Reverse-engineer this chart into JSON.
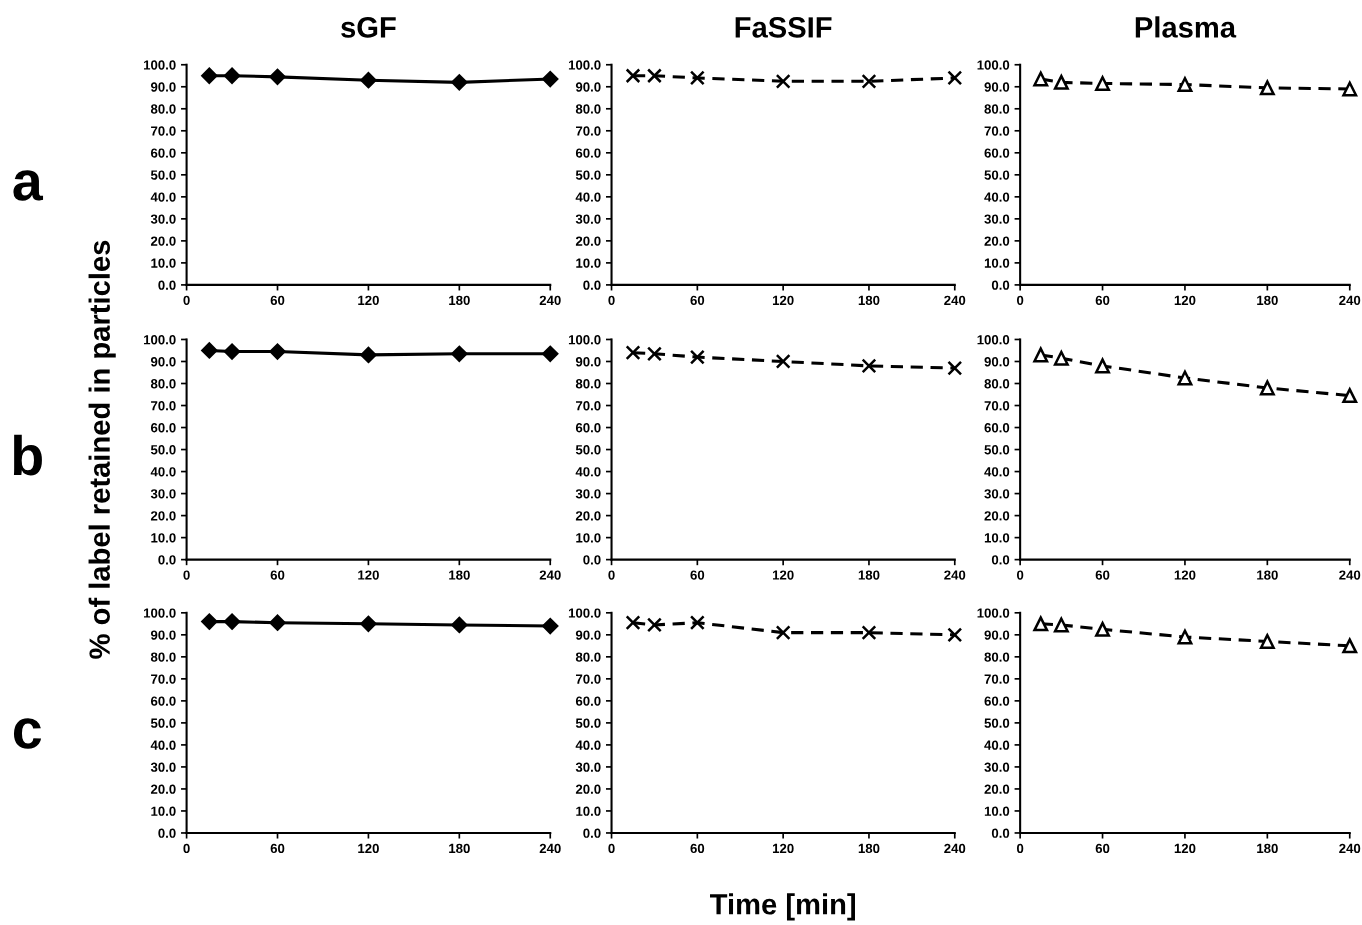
{
  "chart_data": [
    {
      "type": "line",
      "title": "sGF",
      "annotations": [
        "a"
      ],
      "x": [
        15,
        30,
        60,
        120,
        180,
        240
      ],
      "series": [
        {
          "color": "#000000",
          "values": [
            95,
            95,
            94.5,
            93,
            92,
            93.5
          ]
        }
      ],
      "marker": "diamond",
      "line_style": "solid",
      "xlim": [
        0,
        240
      ],
      "ylim": [
        0,
        100
      ],
      "xticks": [
        0,
        60,
        120,
        180,
        240
      ],
      "yticks": [
        {
          "value": 0,
          "label": "0.0"
        },
        {
          "value": 10,
          "label": "10.0"
        },
        {
          "value": 20,
          "label": "20.0"
        },
        {
          "value": 30,
          "label": "30.0"
        },
        {
          "value": 40,
          "label": "40.0"
        },
        {
          "value": 50,
          "label": "50.0"
        },
        {
          "value": 60,
          "label": "60.0"
        },
        {
          "value": 70,
          "label": "70.0"
        },
        {
          "value": 80,
          "label": "80.0"
        },
        {
          "value": 90,
          "label": "90.0"
        },
        {
          "value": 100,
          "label": "100.0"
        }
      ],
      "grid": false,
      "legend": false
    },
    {
      "type": "line",
      "title": "FaSSIF",
      "x": [
        15,
        30,
        60,
        120,
        180,
        240
      ],
      "series": [
        {
          "color": "#000000",
          "values": [
            95,
            95,
            94,
            92.5,
            92.5,
            94
          ]
        }
      ],
      "marker": "cross",
      "line_style": "dashed",
      "xlim": [
        0,
        240
      ],
      "ylim": [
        0,
        100
      ],
      "xticks": [
        0,
        60,
        120,
        180,
        240
      ],
      "yticks": [
        {
          "value": 0,
          "label": "0.0"
        },
        {
          "value": 10,
          "label": "10.0"
        },
        {
          "value": 20,
          "label": "20.0"
        },
        {
          "value": 30,
          "label": "30.0"
        },
        {
          "value": 40,
          "label": "40.0"
        },
        {
          "value": 50,
          "label": "50.0"
        },
        {
          "value": 60,
          "label": "60.0"
        },
        {
          "value": 70,
          "label": "70.0"
        },
        {
          "value": 80,
          "label": "80.0"
        },
        {
          "value": 90,
          "label": "90.0"
        },
        {
          "value": 100,
          "label": "100.0"
        }
      ],
      "grid": false,
      "legend": false
    },
    {
      "type": "line",
      "title": "Plasma",
      "x": [
        15,
        30,
        60,
        120,
        180,
        240
      ],
      "series": [
        {
          "color": "#000000",
          "values": [
            93.5,
            92,
            91.5,
            91,
            89.5,
            89
          ]
        }
      ],
      "marker": "triangle",
      "line_style": "dashed",
      "xlim": [
        0,
        240
      ],
      "ylim": [
        0,
        100
      ],
      "xticks": [
        0,
        60,
        120,
        180,
        240
      ],
      "yticks": [
        {
          "value": 0,
          "label": "0.0"
        },
        {
          "value": 10,
          "label": "10.0"
        },
        {
          "value": 20,
          "label": "20.0"
        },
        {
          "value": 30,
          "label": "30.0"
        },
        {
          "value": 40,
          "label": "40.0"
        },
        {
          "value": 50,
          "label": "50.0"
        },
        {
          "value": 60,
          "label": "60.0"
        },
        {
          "value": 70,
          "label": "70.0"
        },
        {
          "value": 80,
          "label": "80.0"
        },
        {
          "value": 90,
          "label": "90.0"
        },
        {
          "value": 100,
          "label": "100.0"
        }
      ],
      "grid": false,
      "legend": false
    },
    {
      "type": "line",
      "ylabel": "% of label retained in particles",
      "annotations": [
        "b"
      ],
      "x": [
        15,
        30,
        60,
        120,
        180,
        240
      ],
      "series": [
        {
          "color": "#000000",
          "values": [
            95,
            94.5,
            94.5,
            93,
            93.5,
            93.5
          ]
        }
      ],
      "marker": "diamond",
      "line_style": "solid",
      "xlim": [
        0,
        240
      ],
      "ylim": [
        0,
        100
      ],
      "xticks": [
        0,
        60,
        120,
        180,
        240
      ],
      "yticks": [
        {
          "value": 0,
          "label": "0.0"
        },
        {
          "value": 10,
          "label": "10.0"
        },
        {
          "value": 20,
          "label": "20.0"
        },
        {
          "value": 30,
          "label": "30.0"
        },
        {
          "value": 40,
          "label": "40.0"
        },
        {
          "value": 50,
          "label": "50.0"
        },
        {
          "value": 60,
          "label": "60.0"
        },
        {
          "value": 70,
          "label": "70.0"
        },
        {
          "value": 80,
          "label": "80.0"
        },
        {
          "value": 90,
          "label": "90.0"
        },
        {
          "value": 100,
          "label": "100.0"
        }
      ],
      "grid": false,
      "legend": false
    },
    {
      "type": "line",
      "x": [
        15,
        30,
        60,
        120,
        180,
        240
      ],
      "series": [
        {
          "color": "#000000",
          "values": [
            94,
            93.5,
            92,
            90,
            88,
            87
          ]
        }
      ],
      "marker": "cross",
      "line_style": "dashed",
      "xlim": [
        0,
        240
      ],
      "ylim": [
        0,
        100
      ],
      "xticks": [
        0,
        60,
        120,
        180,
        240
      ],
      "yticks": [
        {
          "value": 0,
          "label": "0.0"
        },
        {
          "value": 10,
          "label": "10.0"
        },
        {
          "value": 20,
          "label": "20.0"
        },
        {
          "value": 30,
          "label": "30.0"
        },
        {
          "value": 40,
          "label": "40.0"
        },
        {
          "value": 50,
          "label": "50.0"
        },
        {
          "value": 60,
          "label": "60.0"
        },
        {
          "value": 70,
          "label": "70.0"
        },
        {
          "value": 80,
          "label": "80.0"
        },
        {
          "value": 90,
          "label": "90.0"
        },
        {
          "value": 100,
          "label": "100.0"
        }
      ],
      "grid": false,
      "legend": false
    },
    {
      "type": "line",
      "x": [
        15,
        30,
        60,
        120,
        180,
        240
      ],
      "series": [
        {
          "color": "#000000",
          "values": [
            93,
            91.5,
            88,
            82.5,
            78,
            74.5
          ]
        }
      ],
      "marker": "triangle",
      "line_style": "dashed",
      "xlim": [
        0,
        240
      ],
      "ylim": [
        0,
        100
      ],
      "xticks": [
        0,
        60,
        120,
        180,
        240
      ],
      "yticks": [
        {
          "value": 0,
          "label": "0.0"
        },
        {
          "value": 10,
          "label": "10.0"
        },
        {
          "value": 20,
          "label": "20.0"
        },
        {
          "value": 30,
          "label": "30.0"
        },
        {
          "value": 40,
          "label": "40.0"
        },
        {
          "value": 50,
          "label": "50.0"
        },
        {
          "value": 60,
          "label": "60.0"
        },
        {
          "value": 70,
          "label": "70.0"
        },
        {
          "value": 80,
          "label": "80.0"
        },
        {
          "value": 90,
          "label": "90.0"
        },
        {
          "value": 100,
          "label": "100.0"
        }
      ],
      "grid": false,
      "legend": false
    },
    {
      "type": "line",
      "annotations": [
        "c"
      ],
      "x": [
        15,
        30,
        60,
        120,
        180,
        240
      ],
      "series": [
        {
          "color": "#000000",
          "values": [
            96,
            96,
            95.5,
            95,
            94.5,
            94
          ]
        }
      ],
      "marker": "diamond",
      "line_style": "solid",
      "xlim": [
        0,
        240
      ],
      "ylim": [
        0,
        100
      ],
      "xticks": [
        0,
        60,
        120,
        180,
        240
      ],
      "yticks": [
        {
          "value": 0,
          "label": "0.0"
        },
        {
          "value": 10,
          "label": "10.0"
        },
        {
          "value": 20,
          "label": "20.0"
        },
        {
          "value": 30,
          "label": "30.0"
        },
        {
          "value": 40,
          "label": "40.0"
        },
        {
          "value": 50,
          "label": "50.0"
        },
        {
          "value": 60,
          "label": "60.0"
        },
        {
          "value": 70,
          "label": "70.0"
        },
        {
          "value": 80,
          "label": "80.0"
        },
        {
          "value": 90,
          "label": "90.0"
        },
        {
          "value": 100,
          "label": "100.0"
        }
      ],
      "grid": false,
      "legend": false
    },
    {
      "type": "line",
      "xlabel": "Time [min]",
      "x": [
        15,
        30,
        60,
        120,
        180,
        240
      ],
      "series": [
        {
          "color": "#000000",
          "values": [
            95.5,
            94.5,
            95.5,
            91,
            91,
            90
          ]
        }
      ],
      "marker": "cross",
      "line_style": "dashed",
      "xlim": [
        0,
        240
      ],
      "ylim": [
        0,
        100
      ],
      "xticks": [
        0,
        60,
        120,
        180,
        240
      ],
      "yticks": [
        {
          "value": 0,
          "label": "0.0"
        },
        {
          "value": 10,
          "label": "10.0"
        },
        {
          "value": 20,
          "label": "20.0"
        },
        {
          "value": 30,
          "label": "30.0"
        },
        {
          "value": 40,
          "label": "40.0"
        },
        {
          "value": 50,
          "label": "50.0"
        },
        {
          "value": 60,
          "label": "60.0"
        },
        {
          "value": 70,
          "label": "70.0"
        },
        {
          "value": 80,
          "label": "80.0"
        },
        {
          "value": 90,
          "label": "90.0"
        },
        {
          "value": 100,
          "label": "100.0"
        }
      ],
      "grid": false,
      "legend": false
    },
    {
      "type": "line",
      "x": [
        15,
        30,
        60,
        120,
        180,
        240
      ],
      "series": [
        {
          "color": "#000000",
          "values": [
            95,
            94.5,
            92.5,
            89,
            87,
            85
          ]
        }
      ],
      "marker": "triangle",
      "line_style": "dashed",
      "xlim": [
        0,
        240
      ],
      "ylim": [
        0,
        100
      ],
      "xticks": [
        0,
        60,
        120,
        180,
        240
      ],
      "yticks": [
        {
          "value": 0,
          "label": "0.0"
        },
        {
          "value": 10,
          "label": "10.0"
        },
        {
          "value": 20,
          "label": "20.0"
        },
        {
          "value": 30,
          "label": "30.0"
        },
        {
          "value": 40,
          "label": "40.0"
        },
        {
          "value": 50,
          "label": "50.0"
        },
        {
          "value": 60,
          "label": "60.0"
        },
        {
          "value": 70,
          "label": "70.0"
        },
        {
          "value": 80,
          "label": "80.0"
        },
        {
          "value": 90,
          "label": "90.0"
        },
        {
          "value": 100,
          "label": "100.0"
        }
      ],
      "grid": false,
      "legend": false
    }
  ]
}
